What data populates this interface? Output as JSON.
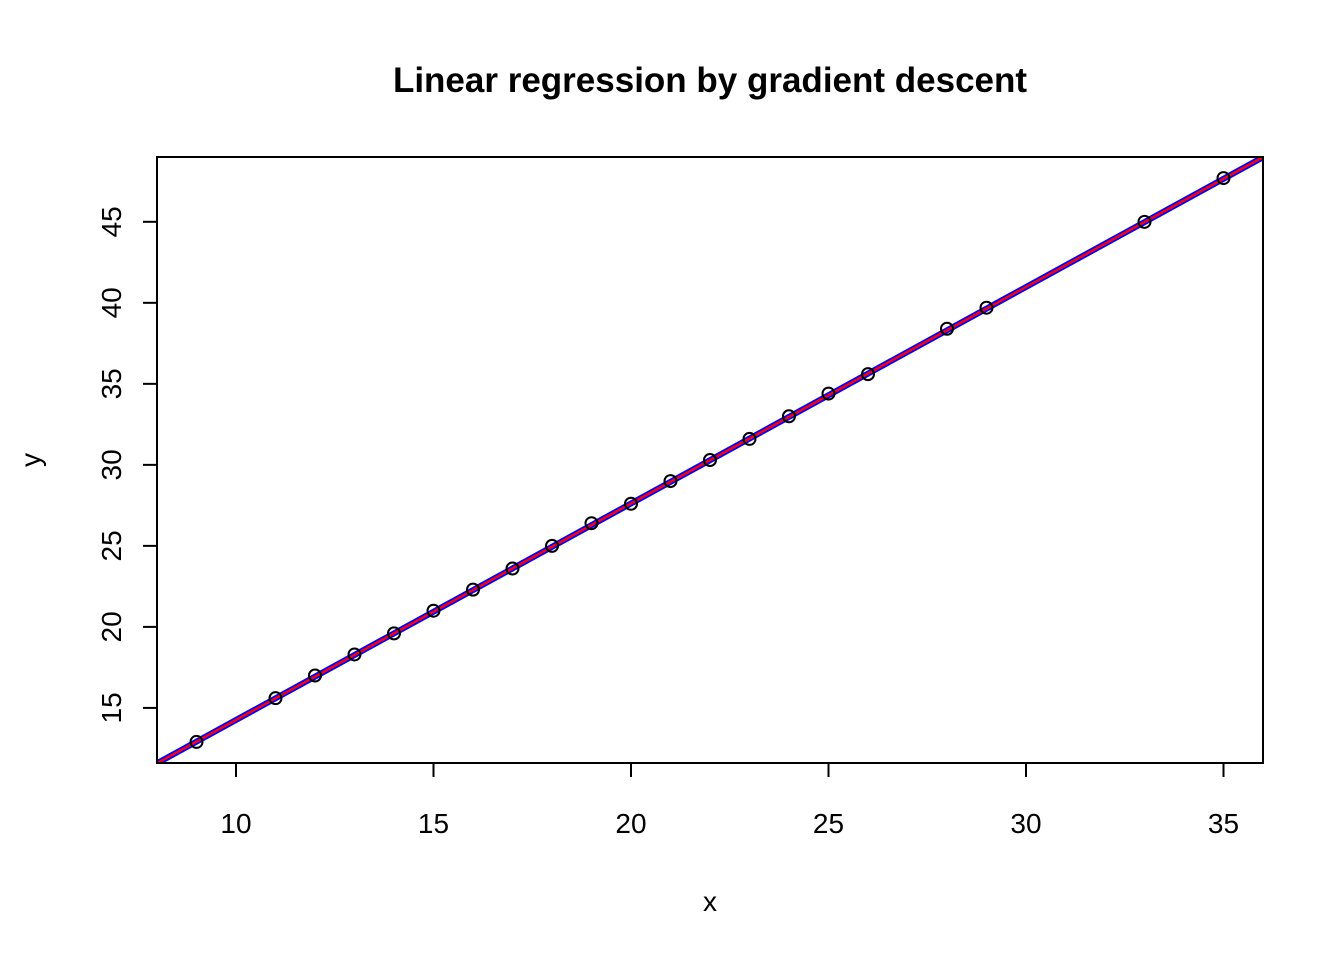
{
  "chart_data": {
    "type": "scatter",
    "title": "Linear regression by gradient descent",
    "xlabel": "x",
    "ylabel": "y",
    "xlim": [
      8,
      36
    ],
    "ylim": [
      11.6,
      49
    ],
    "xticks": [
      10,
      15,
      20,
      25,
      30,
      35
    ],
    "yticks": [
      15,
      20,
      25,
      30,
      35,
      40,
      45
    ],
    "grid": false,
    "points": {
      "x": [
        9,
        11,
        12,
        13,
        14,
        15,
        16,
        17,
        18,
        19,
        20,
        21,
        22,
        23,
        24,
        25,
        26,
        28,
        29,
        33,
        35
      ],
      "y": [
        12.9,
        15.6,
        17.0,
        18.3,
        19.6,
        21.0,
        22.3,
        23.6,
        25.0,
        26.4,
        27.6,
        29.0,
        30.3,
        31.6,
        33.0,
        34.4,
        35.6,
        38.4,
        39.7,
        45.0,
        47.7
      ]
    },
    "fit_lines": [
      {
        "slope": 1.336,
        "intercept": 0.895,
        "color": "#0000ff"
      },
      {
        "slope": 1.336,
        "intercept": 0.895,
        "color": "#ff0000"
      }
    ]
  }
}
